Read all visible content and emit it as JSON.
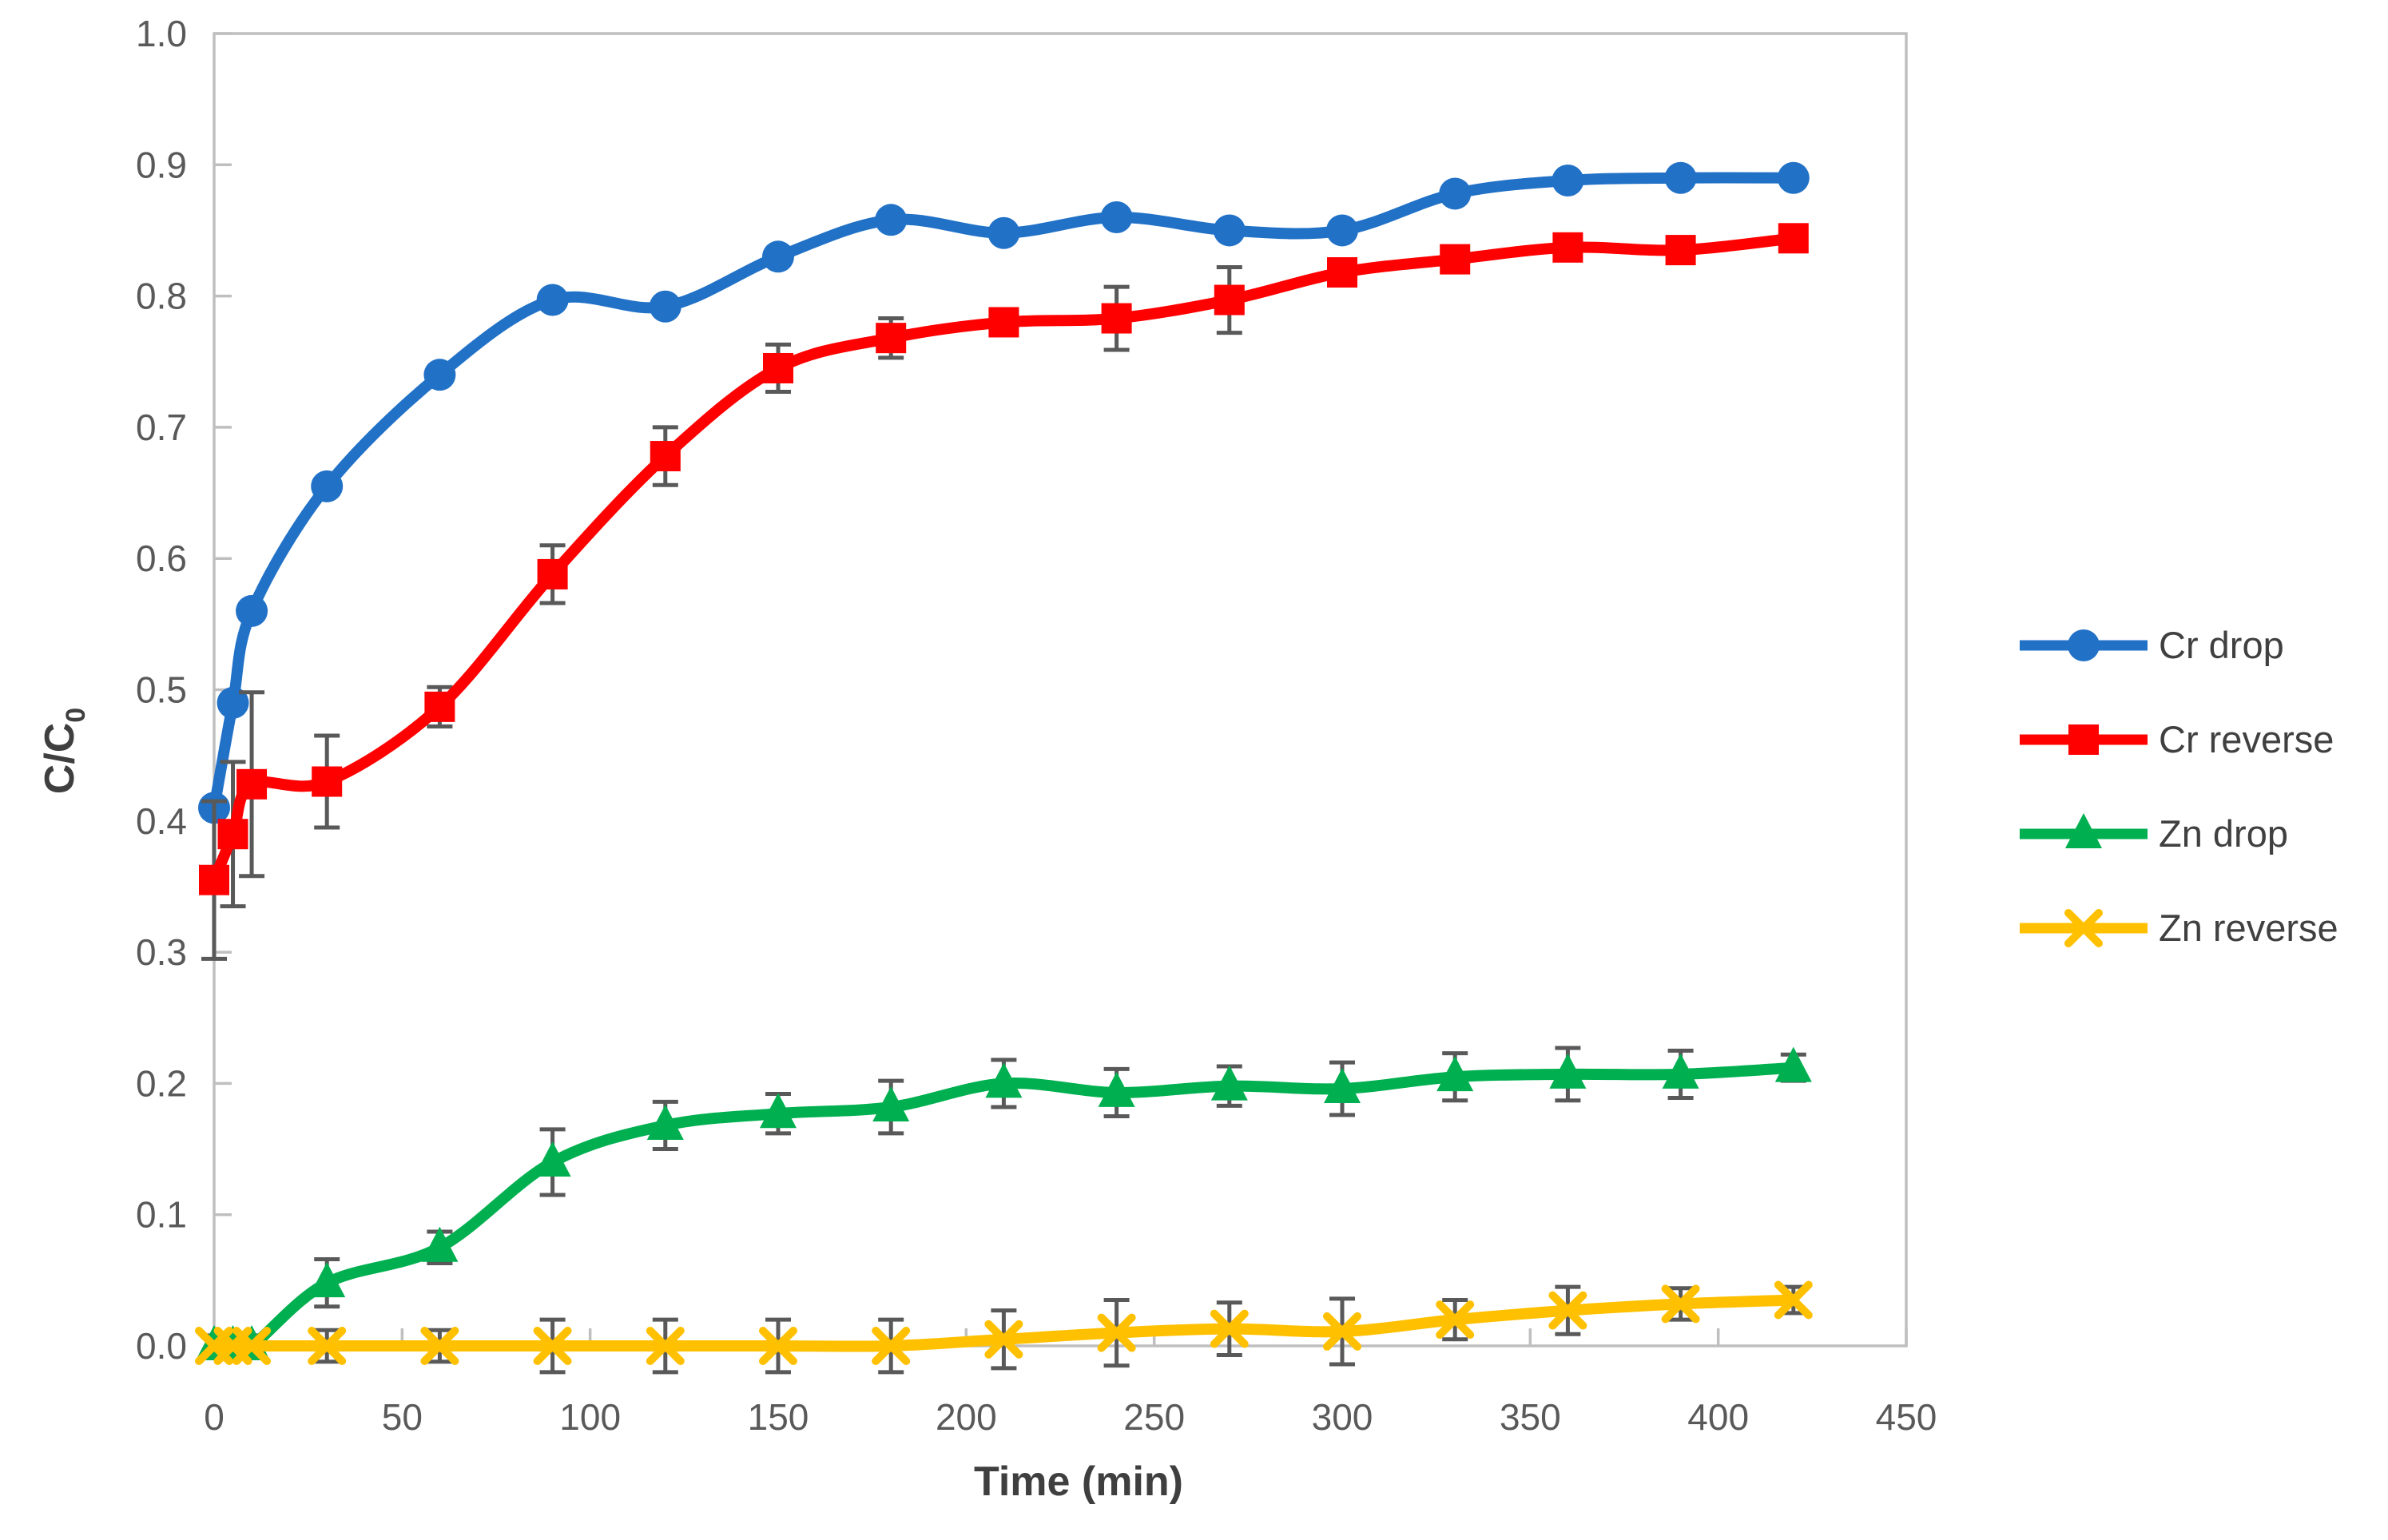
{
  "figure": {
    "background": "#FFFFFF",
    "axis_color": "#BFBFBF",
    "tick_label_color": "#595959",
    "title_color": "#3F3F3F",
    "x_axis": {
      "label": "Time (min)"
    },
    "y_axis": {
      "label": "C/C",
      "label_sub": "0"
    },
    "legend": [
      {
        "label": "Cr drop"
      },
      {
        "label": "Cr reverse"
      },
      {
        "label": "Zn drop"
      },
      {
        "label": "Zn reverse"
      }
    ]
  },
  "chart_data": {
    "type": "line",
    "title": "",
    "xlabel": "Time (min)",
    "ylabel": "C/C0",
    "xlim": [
      0,
      450
    ],
    "ylim": [
      0.0,
      1.0
    ],
    "x_ticks": [
      0,
      50,
      100,
      150,
      200,
      250,
      300,
      350,
      400,
      450
    ],
    "y_ticks": [
      "0.0",
      "0.1",
      "0.2",
      "0.3",
      "0.4",
      "0.5",
      "0.6",
      "0.7",
      "0.8",
      "0.9",
      "1.0"
    ],
    "grid": false,
    "legend_position": "right",
    "error_bar_color": "#595959",
    "x": [
      0,
      5,
      10,
      30,
      60,
      90,
      120,
      150,
      180,
      210,
      240,
      270,
      300,
      330,
      360,
      390,
      420
    ],
    "series": [
      {
        "name": "Cr drop",
        "color": "#2171C7",
        "marker": "circle",
        "values": [
          0.41,
          0.49,
          0.56,
          0.655,
          0.74,
          0.797,
          0.792,
          0.83,
          0.858,
          0.848,
          0.86,
          0.85,
          0.85,
          0.878,
          0.888,
          0.89,
          0.89
        ],
        "errors": [
          0,
          0,
          0,
          0,
          0,
          0,
          0,
          0,
          0,
          0,
          0,
          0,
          0,
          0,
          0,
          0,
          0
        ]
      },
      {
        "name": "Cr reverse",
        "color": "#FF0000",
        "marker": "square",
        "values": [
          0.355,
          0.39,
          0.428,
          0.43,
          0.487,
          0.588,
          0.678,
          0.745,
          0.768,
          0.78,
          0.783,
          0.797,
          0.818,
          0.828,
          0.837,
          0.835,
          0.844
        ],
        "errors": [
          0.06,
          0.055,
          0.07,
          0.035,
          0.015,
          0.022,
          0.022,
          0.018,
          0.015,
          0,
          0.024,
          0.025,
          0,
          0,
          0,
          0,
          0
        ]
      },
      {
        "name": "Zn drop",
        "color": "#00B050",
        "marker": "triangle",
        "values": [
          0,
          0,
          0,
          0.048,
          0.075,
          0.14,
          0.168,
          0.177,
          0.182,
          0.2,
          0.193,
          0.198,
          0.196,
          0.205,
          0.207,
          0.207,
          0.212
        ],
        "errors": [
          0.008,
          0.008,
          0.008,
          0.018,
          0.012,
          0.025,
          0.018,
          0.015,
          0.02,
          0.018,
          0.018,
          0.015,
          0.02,
          0.018,
          0.02,
          0.018,
          0.01
        ]
      },
      {
        "name": "Zn reverse",
        "color": "#FFC000",
        "marker": "x",
        "values": [
          0,
          0,
          0,
          0,
          0,
          0,
          0,
          0,
          0,
          0.005,
          0.01,
          0.013,
          0.011,
          0.02,
          0.027,
          0.032,
          0.035
        ],
        "errors": [
          0,
          0,
          0,
          0.012,
          0.012,
          0.02,
          0.02,
          0.02,
          0.02,
          0.022,
          0.025,
          0.02,
          0.025,
          0.015,
          0.018,
          0.012,
          0.01
        ]
      }
    ]
  }
}
